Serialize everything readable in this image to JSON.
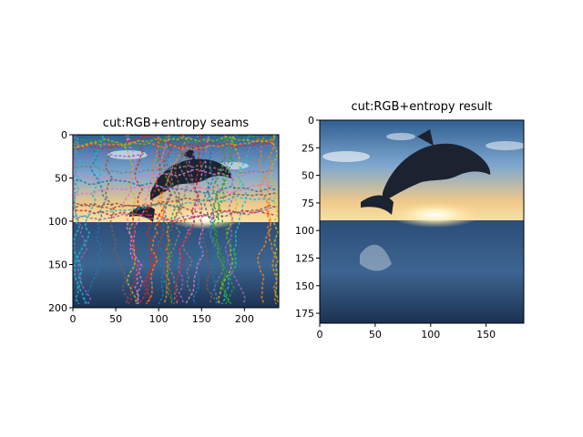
{
  "figure": {
    "background": "#ffffff"
  },
  "chart_data": [
    {
      "type": "image",
      "title": "cut:RGB+entropy seams",
      "xlabel": "",
      "ylabel": "",
      "xlim": [
        0,
        240
      ],
      "ylim": [
        200,
        0
      ],
      "xticks": [
        0,
        50,
        100,
        150,
        200
      ],
      "yticks": [
        0,
        50,
        100,
        150,
        200
      ],
      "content": "dolphin-photo-with-seams",
      "seam_colors": [
        "#1f77b4",
        "#ff7f0e",
        "#2ca02c",
        "#d62728",
        "#9467bd",
        "#8c564b",
        "#e377c2",
        "#7f7f7f",
        "#bcbd22",
        "#17becf"
      ]
    },
    {
      "type": "image",
      "title": "cut:RGB+entropy result",
      "xlabel": "",
      "ylabel": "",
      "xlim": [
        0,
        184
      ],
      "ylim": [
        184,
        0
      ],
      "xticks": [
        0,
        50,
        100,
        150
      ],
      "yticks": [
        0,
        25,
        50,
        75,
        100,
        125,
        150,
        175
      ],
      "content": "dolphin-photo-result"
    }
  ]
}
